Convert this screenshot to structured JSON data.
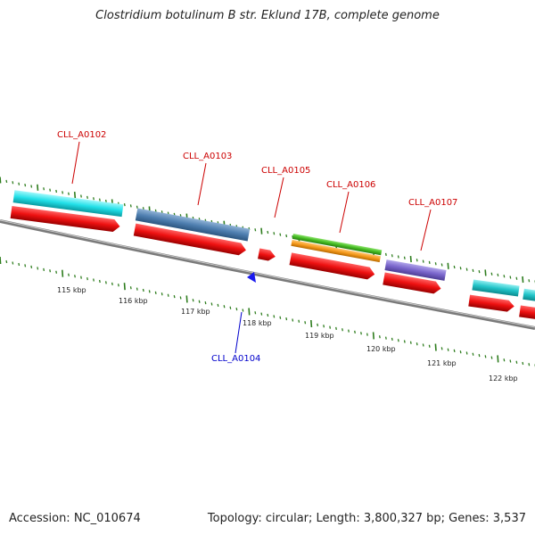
{
  "title": "Clostridium botulinum B str. Eklund 17B, complete genome",
  "footer": {
    "accession": "Accession: NC_010674",
    "summary": "Topology: circular; Length: 3,800,327 bp; Genes: 3,537"
  },
  "colors": {
    "backbone": "#7a7a7a",
    "tick": "#2e7d1e",
    "forward_label": "#cc0000",
    "reverse_label": "#0000cc",
    "cds_red": "#ee1111",
    "cyan": "#22e0e8",
    "steel_blue": "#4f7fb0",
    "green": "#44bb22",
    "orange": "#f59a1c",
    "purple": "#7a66cc",
    "teal": "#22c4c8"
  },
  "scale_labels": [
    "115 kbp",
    "116 kbp",
    "117 kbp",
    "118 kbp",
    "119 kbp",
    "120 kbp",
    "121 kbp",
    "122 kbp"
  ],
  "gene_labels": [
    {
      "name": "CLL_A0102",
      "strand": "forward"
    },
    {
      "name": "CLL_A0103",
      "strand": "forward"
    },
    {
      "name": "CLL_A0105",
      "strand": "forward"
    },
    {
      "name": "CLL_A0106",
      "strand": "forward"
    },
    {
      "name": "CLL_A0107",
      "strand": "forward"
    },
    {
      "name": "CLL_A0104",
      "strand": "reverse"
    }
  ]
}
